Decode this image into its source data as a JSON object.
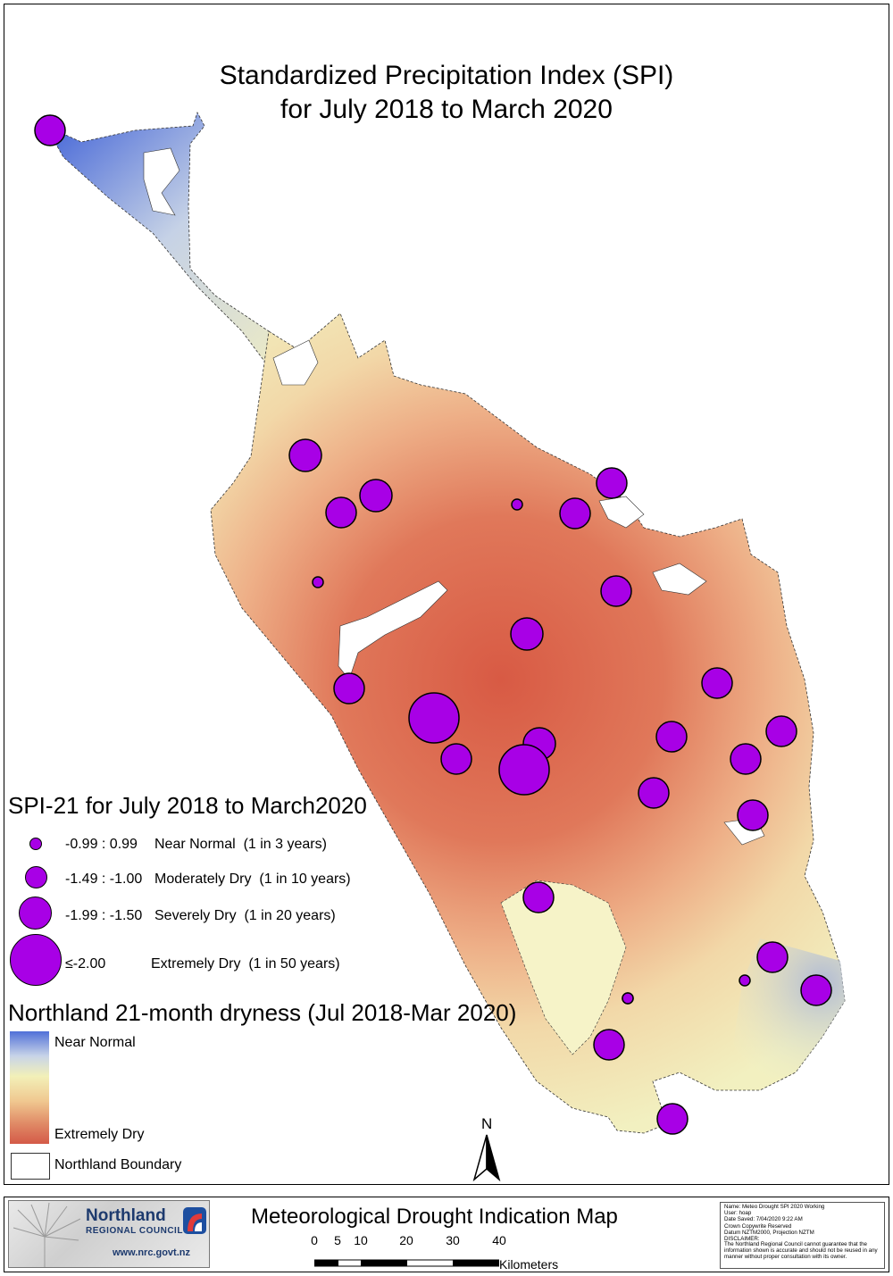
{
  "title": {
    "line1": "Standardized Precipitation Index (SPI)",
    "line2": "for July 2018 to March 2020"
  },
  "legend_spi": {
    "heading": "SPI-21 for July 2018 to March2020",
    "classes": [
      {
        "range": "-0.99 : 0.99",
        "label": "Near Normal  (1 in 3 years)",
        "size_class": "small"
      },
      {
        "range": "-1.49 : -1.00",
        "label": "Moderately Dry  (1 in 10 years)",
        "size_class": "medium"
      },
      {
        "range": "-1.99 : -1.50",
        "label": "Severely Dry  (1 in 20 years)",
        "size_class": "large"
      },
      {
        "range": "≤-2.00",
        "label": "Extremely Dry  (1 in 50 years)",
        "size_class": "xlarge"
      }
    ]
  },
  "legend_dryness": {
    "heading": "Northland 21-month dryness (Jul 2018-Mar 2020)",
    "ramp_top_label": "Near Normal",
    "ramp_bottom_label": "Extremely Dry",
    "boundary_label": "Northland Boundary"
  },
  "colors": {
    "marker_fill": "#a800e6",
    "near_normal": "#5070d8",
    "neutral": "#f2f0b8",
    "extremely_dry": "#d45a48"
  },
  "north_arrow": {
    "label": "N"
  },
  "footer": {
    "org_name": "Northland",
    "org_sub": "REGIONAL COUNCIL",
    "org_url": "www.nrc.govt.nz",
    "map_title": "Meteorological Drought Indication Map",
    "scale_ticks": [
      "0",
      "5",
      "10",
      "20",
      "30",
      "40"
    ],
    "scale_unit": "Kilometers",
    "meta": {
      "name": "Name: Meteo Drought SPI 2020 Working",
      "user": "User: hoap",
      "date": "Date Saved: 7/04/2020 9:22 AM",
      "copyright": "Crown Copywrite Reserved",
      "datum": "Datum NZTM2000, Projection NZTM",
      "disclaimer_title": "DISCLAIMER:",
      "disclaimer": "The Northland Regional Council cannot guarantee that the information shown is accurate and should not be reused in any manner without proper consultation with its owner."
    }
  },
  "stations": [
    {
      "class": "small"
    },
    {
      "class": "medium"
    },
    {
      "class": "large"
    },
    {
      "class": "large"
    },
    {
      "class": "small"
    },
    {
      "class": "medium"
    },
    {
      "class": "small"
    },
    {
      "class": "medium"
    },
    {
      "class": "medium"
    },
    {
      "class": "large"
    },
    {
      "class": "medium"
    },
    {
      "class": "medium"
    },
    {
      "class": "xlarge"
    },
    {
      "class": "large"
    },
    {
      "class": "medium"
    },
    {
      "class": "medium"
    },
    {
      "class": "xlarge"
    },
    {
      "class": "medium"
    },
    {
      "class": "medium"
    },
    {
      "class": "medium"
    },
    {
      "class": "medium"
    },
    {
      "class": "medium"
    },
    {
      "class": "small"
    },
    {
      "class": "medium"
    },
    {
      "class": "small"
    },
    {
      "class": "medium"
    },
    {
      "class": "medium"
    },
    {
      "class": "medium"
    },
    {
      "class": "medium"
    },
    {
      "class": "small"
    }
  ]
}
